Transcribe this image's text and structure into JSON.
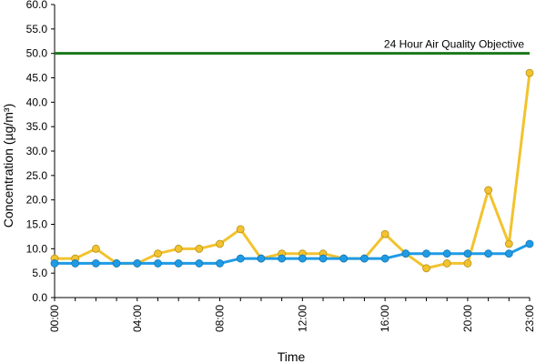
{
  "chart_data": {
    "type": "line",
    "xlabel": "Time",
    "ylabel": "Concentration (µg/m³)",
    "ylim": [
      0,
      60
    ],
    "yticks": [
      "0.0",
      "5.0",
      "10.0",
      "15.0",
      "20.0",
      "25.0",
      "30.0",
      "35.0",
      "40.0",
      "45.0",
      "50.0",
      "55.0",
      "60.0"
    ],
    "x": [
      "00:00",
      "01:00",
      "02:00",
      "03:00",
      "04:00",
      "05:00",
      "06:00",
      "07:00",
      "08:00",
      "09:00",
      "10:00",
      "11:00",
      "12:00",
      "13:00",
      "14:00",
      "15:00",
      "16:00",
      "17:00",
      "18:00",
      "19:00",
      "20:00",
      "21:00",
      "22:00",
      "23:00"
    ],
    "xtick_labels": [
      "00:00",
      "04:00",
      "08:00",
      "12:00",
      "16:00",
      "20:00",
      "23:00"
    ],
    "grid": false,
    "series": [
      {
        "color": "#f2c32e",
        "values": [
          8,
          8,
          10,
          7,
          7,
          9,
          10,
          10,
          11,
          14,
          8,
          9,
          9,
          9,
          8,
          8,
          13,
          9,
          6,
          7,
          7,
          22,
          11,
          46
        ]
      },
      {
        "color": "#1f9be5",
        "values": [
          7,
          7,
          7,
          7,
          7,
          7,
          7,
          7,
          7,
          8,
          8,
          8,
          8,
          8,
          8,
          8,
          8,
          9,
          9,
          9,
          9,
          9,
          9,
          11
        ]
      }
    ],
    "reference_line": {
      "value": 50,
      "label": "24 Hour Air Quality Objective",
      "color": "#1a7a1a"
    }
  }
}
